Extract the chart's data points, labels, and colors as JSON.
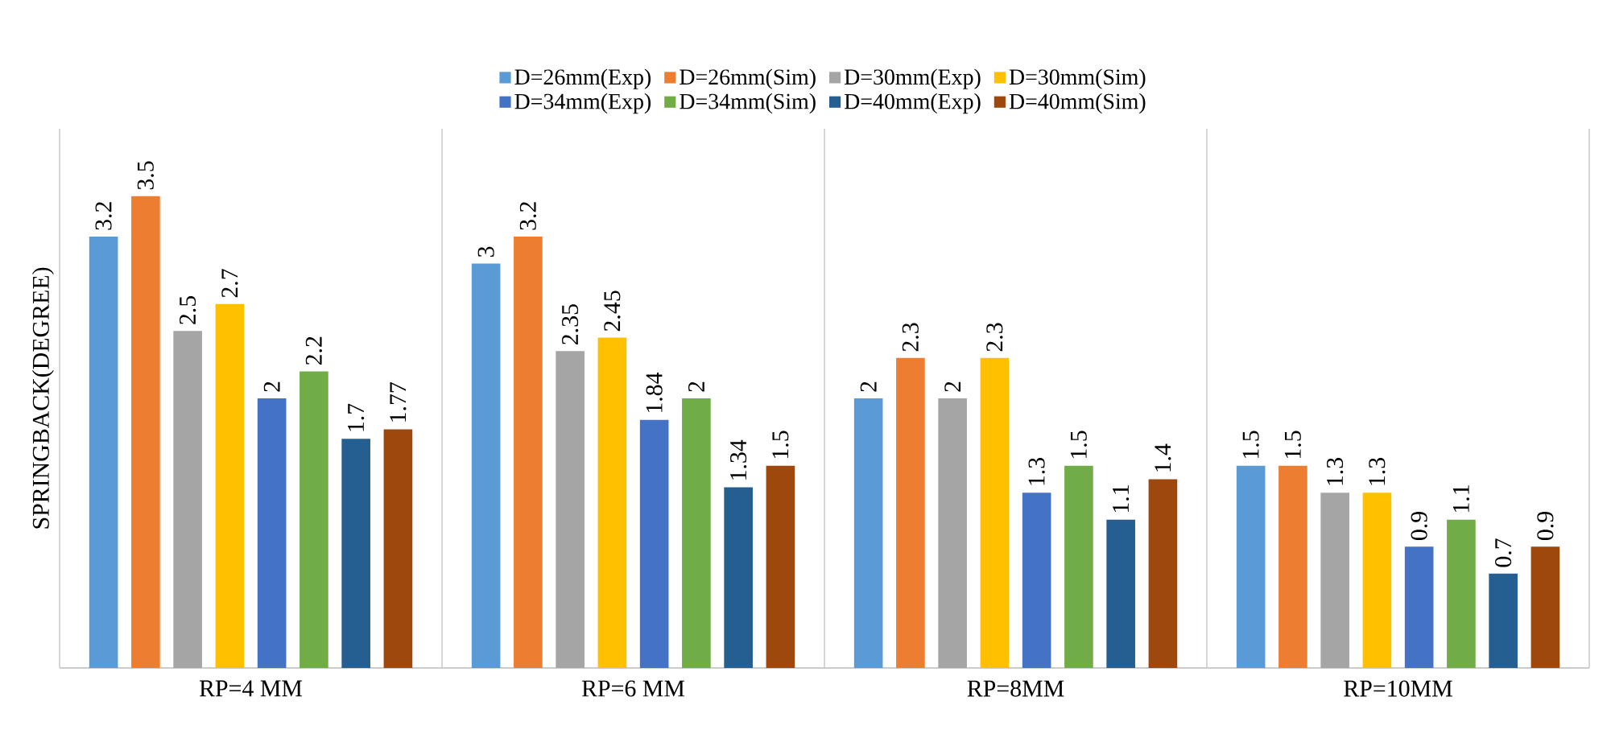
{
  "chart_data": {
    "type": "bar",
    "ylabel": "SPRINGBACK(DEGREE)",
    "categories": [
      "RP=4  MM",
      "RP=6  MM",
      "RP=8MM",
      "RP=10MM"
    ],
    "series": [
      {
        "name": "D=26mm(Exp)",
        "color": "#5b9bd5",
        "values": [
          3.2,
          3,
          2,
          1.5
        ]
      },
      {
        "name": "D=26mm(Sim)",
        "color": "#ed7d31",
        "values": [
          3.5,
          3.2,
          2.3,
          1.5
        ]
      },
      {
        "name": "D=30mm(Exp)",
        "color": "#a5a5a5",
        "values": [
          2.5,
          2.35,
          2,
          1.3
        ]
      },
      {
        "name": "D=30mm(Sim)",
        "color": "#ffc000",
        "values": [
          2.7,
          2.45,
          2.3,
          1.3
        ]
      },
      {
        "name": "D=34mm(Exp)",
        "color": "#4472c4",
        "values": [
          2,
          1.84,
          1.3,
          0.9
        ]
      },
      {
        "name": "D=34mm(Sim)",
        "color": "#70ad47",
        "values": [
          2.2,
          2,
          1.5,
          1.1
        ]
      },
      {
        "name": "D=40mm(Exp)",
        "color": "#255e91",
        "values": [
          1.7,
          1.34,
          1.1,
          0.7
        ]
      },
      {
        "name": "D=40mm(Sim)",
        "color": "#9e480e",
        "values": [
          1.77,
          1.5,
          1.4,
          0.9
        ]
      }
    ],
    "ylim": [
      0,
      4
    ],
    "data_labels": true,
    "legend": "top"
  }
}
